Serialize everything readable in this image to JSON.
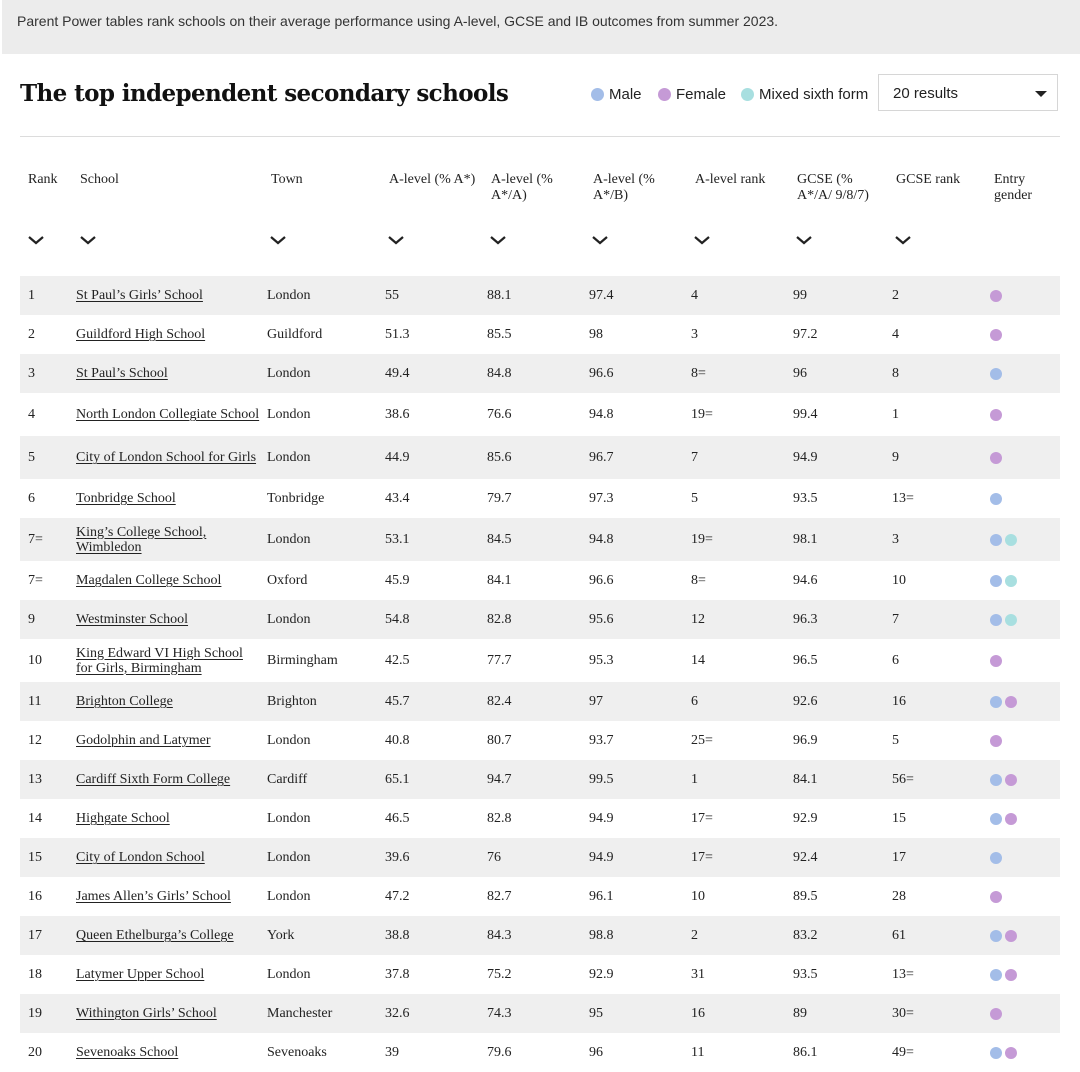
{
  "intro": "Parent Power tables rank schools on their average performance using A-level, GCSE and IB outcomes from summer 2023.",
  "title": "The top independent secondary schools",
  "legend": [
    {
      "label": "Male",
      "color": "#a3bde8"
    },
    {
      "label": "Female",
      "color": "#c59ad6"
    },
    {
      "label": "Mixed sixth form",
      "color": "#a8dfe0"
    }
  ],
  "results_select": {
    "value": "20 results"
  },
  "columns": [
    "Rank",
    "School",
    "Town",
    "A-level (% A*)",
    "A-level (% A*/A)",
    "A-level (% A*/B)",
    "A-level rank",
    "GCSE (% A*/A/ 9/8/7)",
    "GCSE rank",
    "Entry gender"
  ],
  "rows": [
    {
      "rank": "1",
      "school": "St Paul’s Girls’ School",
      "town": "London",
      "a_star": "55",
      "a_star_a": "88.1",
      "a_star_b": "97.4",
      "a_rank": "4",
      "gcse": "99",
      "gcse_rank": "2",
      "gender": [
        "female"
      ]
    },
    {
      "rank": "2",
      "school": "Guildford High School",
      "town": "Guildford",
      "a_star": "51.3",
      "a_star_a": "85.5",
      "a_star_b": "98",
      "a_rank": "3",
      "gcse": "97.2",
      "gcse_rank": "4",
      "gender": [
        "female"
      ]
    },
    {
      "rank": "3",
      "school": "St Paul’s School",
      "town": "London",
      "a_star": "49.4",
      "a_star_a": "84.8",
      "a_star_b": "96.6",
      "a_rank": "8=",
      "gcse": "96",
      "gcse_rank": "8",
      "gender": [
        "male"
      ]
    },
    {
      "rank": "4",
      "school": "North London Collegiate School",
      "town": "London",
      "a_star": "38.6",
      "a_star_a": "76.6",
      "a_star_b": "94.8",
      "a_rank": "19=",
      "gcse": "99.4",
      "gcse_rank": "1",
      "gender": [
        "female"
      ]
    },
    {
      "rank": "5",
      "school": "City of London School for Girls",
      "town": "London",
      "a_star": "44.9",
      "a_star_a": "85.6",
      "a_star_b": "96.7",
      "a_rank": "7",
      "gcse": "94.9",
      "gcse_rank": "9",
      "gender": [
        "female"
      ]
    },
    {
      "rank": "6",
      "school": "Tonbridge School",
      "town": "Tonbridge",
      "a_star": "43.4",
      "a_star_a": "79.7",
      "a_star_b": "97.3",
      "a_rank": "5",
      "gcse": "93.5",
      "gcse_rank": "13=",
      "gender": [
        "male"
      ]
    },
    {
      "rank": "7=",
      "school": "King’s College School, Wimbledon",
      "town": "London",
      "a_star": "53.1",
      "a_star_a": "84.5",
      "a_star_b": "94.8",
      "a_rank": "19=",
      "gcse": "98.1",
      "gcse_rank": "3",
      "gender": [
        "male",
        "mixed"
      ]
    },
    {
      "rank": "7=",
      "school": "Magdalen College School",
      "town": "Oxford",
      "a_star": "45.9",
      "a_star_a": "84.1",
      "a_star_b": "96.6",
      "a_rank": "8=",
      "gcse": "94.6",
      "gcse_rank": "10",
      "gender": [
        "male",
        "mixed"
      ]
    },
    {
      "rank": "9",
      "school": "Westminster School",
      "town": "London",
      "a_star": "54.8",
      "a_star_a": "82.8",
      "a_star_b": "95.6",
      "a_rank": "12",
      "gcse": "96.3",
      "gcse_rank": "7",
      "gender": [
        "male",
        "mixed"
      ]
    },
    {
      "rank": "10",
      "school": "King Edward VI High School for Girls, Birmingham",
      "town": "Birmingham",
      "a_star": "42.5",
      "a_star_a": "77.7",
      "a_star_b": "95.3",
      "a_rank": "14",
      "gcse": "96.5",
      "gcse_rank": "6",
      "gender": [
        "female"
      ]
    },
    {
      "rank": "11",
      "school": "Brighton College",
      "town": "Brighton",
      "a_star": "45.7",
      "a_star_a": "82.4",
      "a_star_b": "97",
      "a_rank": "6",
      "gcse": "92.6",
      "gcse_rank": "16",
      "gender": [
        "male",
        "female"
      ]
    },
    {
      "rank": "12",
      "school": "Godolphin and Latymer",
      "town": "London",
      "a_star": "40.8",
      "a_star_a": "80.7",
      "a_star_b": "93.7",
      "a_rank": "25=",
      "gcse": "96.9",
      "gcse_rank": "5",
      "gender": [
        "female"
      ]
    },
    {
      "rank": "13",
      "school": "Cardiff Sixth Form College",
      "town": "Cardiff",
      "a_star": "65.1",
      "a_star_a": "94.7",
      "a_star_b": "99.5",
      "a_rank": "1",
      "gcse": "84.1",
      "gcse_rank": "56=",
      "gender": [
        "male",
        "female"
      ]
    },
    {
      "rank": "14",
      "school": "Highgate School",
      "town": "London",
      "a_star": "46.5",
      "a_star_a": "82.8",
      "a_star_b": "94.9",
      "a_rank": "17=",
      "gcse": "92.9",
      "gcse_rank": "15",
      "gender": [
        "male",
        "female"
      ]
    },
    {
      "rank": "15",
      "school": "City of London School",
      "town": "London",
      "a_star": "39.6",
      "a_star_a": "76",
      "a_star_b": "94.9",
      "a_rank": "17=",
      "gcse": "92.4",
      "gcse_rank": "17",
      "gender": [
        "male"
      ]
    },
    {
      "rank": "16",
      "school": "James Allen’s Girls’ School",
      "town": "London",
      "a_star": "47.2",
      "a_star_a": "82.7",
      "a_star_b": "96.1",
      "a_rank": "10",
      "gcse": "89.5",
      "gcse_rank": "28",
      "gender": [
        "female"
      ]
    },
    {
      "rank": "17",
      "school": "Queen Ethelburga’s College",
      "town": "York",
      "a_star": "38.8",
      "a_star_a": "84.3",
      "a_star_b": "98.8",
      "a_rank": "2",
      "gcse": "83.2",
      "gcse_rank": "61",
      "gender": [
        "male",
        "female"
      ]
    },
    {
      "rank": "18",
      "school": "Latymer Upper School",
      "town": "London",
      "a_star": "37.8",
      "a_star_a": "75.2",
      "a_star_b": "92.9",
      "a_rank": "31",
      "gcse": "93.5",
      "gcse_rank": "13=",
      "gender": [
        "male",
        "female"
      ]
    },
    {
      "rank": "19",
      "school": "Withington Girls’ School",
      "town": "Manchester",
      "a_star": "32.6",
      "a_star_a": "74.3",
      "a_star_b": "95",
      "a_rank": "16",
      "gcse": "89",
      "gcse_rank": "30=",
      "gender": [
        "female"
      ]
    },
    {
      "rank": "20",
      "school": "Sevenoaks School",
      "town": "Sevenoaks",
      "a_star": "39",
      "a_star_a": "79.6",
      "a_star_b": "96",
      "a_rank": "11",
      "gcse": "86.1",
      "gcse_rank": "49=",
      "gender": [
        "male",
        "female"
      ]
    }
  ],
  "icons": {
    "sort": "chevron-down-icon",
    "select": "caret-down-icon"
  }
}
